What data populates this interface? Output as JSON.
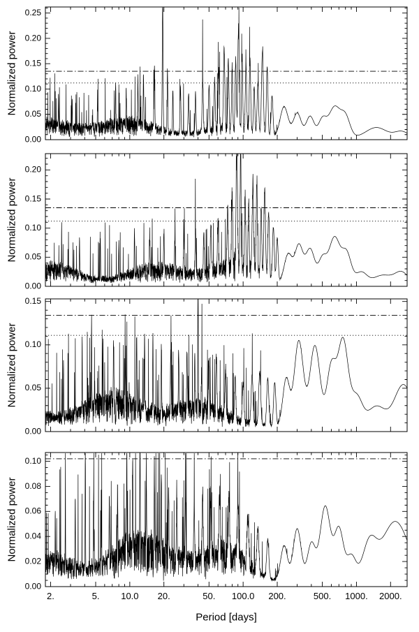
{
  "chart_data": {
    "type": "line",
    "xlabel": "Period [days]",
    "ylabel": "Normalized power",
    "x_scale": "log",
    "xlim": [
      1.8,
      2800
    ],
    "line_color": "#000000",
    "background": "#ffffff",
    "x_major_ticks": [
      {
        "value": 2,
        "label": "2."
      },
      {
        "value": 5,
        "label": "5."
      },
      {
        "value": 10,
        "label": "10.0"
      },
      {
        "value": 20,
        "label": "20."
      },
      {
        "value": 50,
        "label": "50."
      },
      {
        "value": 100,
        "label": "100.0"
      },
      {
        "value": 200,
        "label": "200."
      },
      {
        "value": 500,
        "label": "500."
      },
      {
        "value": 1000,
        "label": "1000."
      },
      {
        "value": 2000,
        "label": "2000."
      }
    ],
    "panels": [
      {
        "name": "panel-1",
        "ylim": [
          0,
          0.262
        ],
        "ytick_step": 0.05,
        "ytick_minor": 0.01,
        "thresholds": {
          "dashed": 0.135,
          "dotted": 0.112
        },
        "noise": {
          "seed": 11,
          "mass": 0.042,
          "spike": 0.12
        },
        "peaks": [
          [
            19.5,
            0.255,
            0.0035
          ],
          [
            16.5,
            0.13,
            0.003
          ],
          [
            21.5,
            0.12,
            0.003
          ],
          [
            13.2,
            0.105,
            0.0028
          ],
          [
            11.8,
            0.09,
            0.0025
          ],
          [
            24,
            0.09,
            0.003
          ],
          [
            28,
            0.095,
            0.004
          ],
          [
            33,
            0.08,
            0.004
          ],
          [
            38,
            0.075,
            0.004
          ],
          [
            44,
            0.105,
            0.005
          ],
          [
            50,
            0.09,
            0.005
          ],
          [
            56,
            0.1,
            0.005
          ],
          [
            61,
            0.125,
            0.005
          ],
          [
            68,
            0.155,
            0.006
          ],
          [
            74,
            0.135,
            0.005
          ],
          [
            80,
            0.125,
            0.005
          ],
          [
            86,
            0.14,
            0.005
          ],
          [
            91,
            0.2,
            0.006
          ],
          [
            98,
            0.15,
            0.005
          ],
          [
            106,
            0.13,
            0.006
          ],
          [
            115,
            0.145,
            0.006
          ],
          [
            125,
            0.09,
            0.006
          ],
          [
            135,
            0.1,
            0.007
          ],
          [
            148,
            0.165,
            0.008
          ],
          [
            163,
            0.135,
            0.007
          ],
          [
            180,
            0.08,
            0.008
          ],
          [
            7.5,
            0.08,
            0.002
          ],
          [
            5.2,
            0.07,
            0.002
          ],
          [
            3.1,
            0.065,
            0.0018
          ],
          [
            2.35,
            0.06,
            0.0015
          ],
          [
            9.3,
            0.075,
            0.002
          ]
        ],
        "lobes": [
          [
            230,
            0.06,
            0.035
          ],
          [
            300,
            0.048,
            0.035
          ],
          [
            390,
            0.042,
            0.035
          ],
          [
            500,
            0.035,
            0.035
          ],
          [
            640,
            0.06,
            0.05
          ],
          [
            800,
            0.04,
            0.04
          ],
          [
            1500,
            0.02,
            0.09
          ],
          [
            2500,
            0.012,
            0.06
          ]
        ]
      },
      {
        "name": "panel-2",
        "ylim": [
          0,
          0.228
        ],
        "ytick_step": 0.05,
        "ytick_minor": 0.01,
        "thresholds": {
          "dashed": 0.135,
          "dotted": 0.112
        },
        "noise": {
          "seed": 22,
          "mass": 0.048,
          "spike": 0.1
        },
        "peaks": [
          [
            88,
            0.215,
            0.006
          ],
          [
            95,
            0.185,
            0.005
          ],
          [
            80,
            0.13,
            0.005
          ],
          [
            73,
            0.1,
            0.005
          ],
          [
            104,
            0.125,
            0.005
          ],
          [
            112,
            0.11,
            0.005
          ],
          [
            122,
            0.155,
            0.006
          ],
          [
            132,
            0.15,
            0.006
          ],
          [
            144,
            0.12,
            0.006
          ],
          [
            155,
            0.155,
            0.007
          ],
          [
            168,
            0.115,
            0.007
          ],
          [
            185,
            0.095,
            0.008
          ],
          [
            200,
            0.075,
            0.008
          ],
          [
            60,
            0.085,
            0.005
          ],
          [
            52,
            0.075,
            0.005
          ],
          [
            45,
            0.07,
            0.004
          ],
          [
            38,
            0.075,
            0.004
          ],
          [
            30,
            0.07,
            0.0035
          ],
          [
            25,
            0.065,
            0.003
          ],
          [
            20,
            0.07,
            0.003
          ],
          [
            15,
            0.065,
            0.0025
          ],
          [
            11,
            0.07,
            0.0022
          ],
          [
            8,
            0.065,
            0.002
          ],
          [
            5.5,
            0.07,
            0.002
          ],
          [
            3.6,
            0.065,
            0.0018
          ],
          [
            2.5,
            0.06,
            0.0015
          ]
        ],
        "lobes": [
          [
            250,
            0.05,
            0.035
          ],
          [
            310,
            0.065,
            0.035
          ],
          [
            390,
            0.06,
            0.04
          ],
          [
            500,
            0.04,
            0.035
          ],
          [
            640,
            0.08,
            0.05
          ],
          [
            820,
            0.05,
            0.04
          ],
          [
            1100,
            0.02,
            0.05
          ],
          [
            1700,
            0.015,
            0.08
          ],
          [
            2500,
            0.02,
            0.06
          ]
        ]
      },
      {
        "name": "panel-3",
        "ylim": [
          0,
          0.153
        ],
        "ytick_step": 0.05,
        "ytick_minor": 0.01,
        "thresholds": {
          "dashed": 0.134,
          "dotted": 0.111
        },
        "noise": {
          "seed": 33,
          "mass": 0.042,
          "spike": 0.1
        },
        "peaks": [
          [
            40,
            0.147,
            0.0025
          ],
          [
            37.5,
            0.055,
            0.003
          ],
          [
            43,
            0.05,
            0.003
          ],
          [
            4.6,
            0.1,
            0.0018
          ],
          [
            3.8,
            0.085,
            0.0016
          ],
          [
            5.8,
            0.085,
            0.0018
          ],
          [
            7.2,
            0.09,
            0.002
          ],
          [
            9.1,
            0.095,
            0.002
          ],
          [
            11.5,
            0.095,
            0.0022
          ],
          [
            13.5,
            0.1,
            0.0022
          ],
          [
            16,
            0.085,
            0.0024
          ],
          [
            19,
            0.08,
            0.0026
          ],
          [
            23,
            0.075,
            0.003
          ],
          [
            27,
            0.07,
            0.003
          ],
          [
            32,
            0.065,
            0.0035
          ],
          [
            50,
            0.06,
            0.004
          ],
          [
            58,
            0.065,
            0.0045
          ],
          [
            70,
            0.055,
            0.005
          ],
          [
            85,
            0.05,
            0.006
          ],
          [
            100,
            0.045,
            0.007
          ],
          [
            120,
            0.055,
            0.008
          ],
          [
            140,
            0.06,
            0.009
          ],
          [
            165,
            0.055,
            0.009
          ],
          [
            190,
            0.05,
            0.01
          ],
          [
            2.6,
            0.07,
            0.0015
          ]
        ],
        "lobes": [
          [
            240,
            0.055,
            0.03
          ],
          [
            310,
            0.1,
            0.04
          ],
          [
            430,
            0.095,
            0.045
          ],
          [
            600,
            0.07,
            0.04
          ],
          [
            760,
            0.1,
            0.045
          ],
          [
            1000,
            0.035,
            0.05
          ],
          [
            1500,
            0.025,
            0.08
          ],
          [
            2600,
            0.05,
            0.08
          ]
        ]
      },
      {
        "name": "panel-4",
        "ylim": [
          0,
          0.107
        ],
        "ytick_step": 0.02,
        "ytick_minor": 0.005,
        "thresholds": {
          "dashed": 0.102,
          "dotted": null
        },
        "noise": {
          "seed": 44,
          "mass": 0.038,
          "spike": 0.09
        },
        "peaks": [
          [
            4.05,
            0.098,
            0.0018
          ],
          [
            3.3,
            0.06,
            0.0016
          ],
          [
            4.8,
            0.065,
            0.0017
          ],
          [
            5.6,
            0.06,
            0.0018
          ],
          [
            6.6,
            0.055,
            0.0018
          ],
          [
            7.8,
            0.06,
            0.002
          ],
          [
            9.4,
            0.088,
            0.002
          ],
          [
            10.6,
            0.075,
            0.002
          ],
          [
            12.3,
            0.092,
            0.0022
          ],
          [
            14,
            0.065,
            0.0022
          ],
          [
            16.5,
            0.07,
            0.0024
          ],
          [
            19,
            0.072,
            0.0026
          ],
          [
            22,
            0.06,
            0.0028
          ],
          [
            26,
            0.055,
            0.003
          ],
          [
            31,
            0.05,
            0.0035
          ],
          [
            37,
            0.048,
            0.004
          ],
          [
            44,
            0.055,
            0.0045
          ],
          [
            52,
            0.048,
            0.005
          ],
          [
            62,
            0.05,
            0.0055
          ],
          [
            75,
            0.045,
            0.006
          ],
          [
            90,
            0.04,
            0.007
          ],
          [
            110,
            0.038,
            0.008
          ],
          [
            135,
            0.035,
            0.009
          ],
          [
            165,
            0.03,
            0.01
          ],
          [
            2.7,
            0.055,
            0.0015
          ],
          [
            2.2,
            0.05,
            0.0014
          ]
        ],
        "lobes": [
          [
            230,
            0.028,
            0.03
          ],
          [
            300,
            0.042,
            0.035
          ],
          [
            400,
            0.03,
            0.035
          ],
          [
            530,
            0.06,
            0.045
          ],
          [
            700,
            0.042,
            0.04
          ],
          [
            900,
            0.02,
            0.04
          ],
          [
            1300,
            0.028,
            0.06
          ],
          [
            2200,
            0.048,
            0.12
          ]
        ]
      }
    ]
  }
}
